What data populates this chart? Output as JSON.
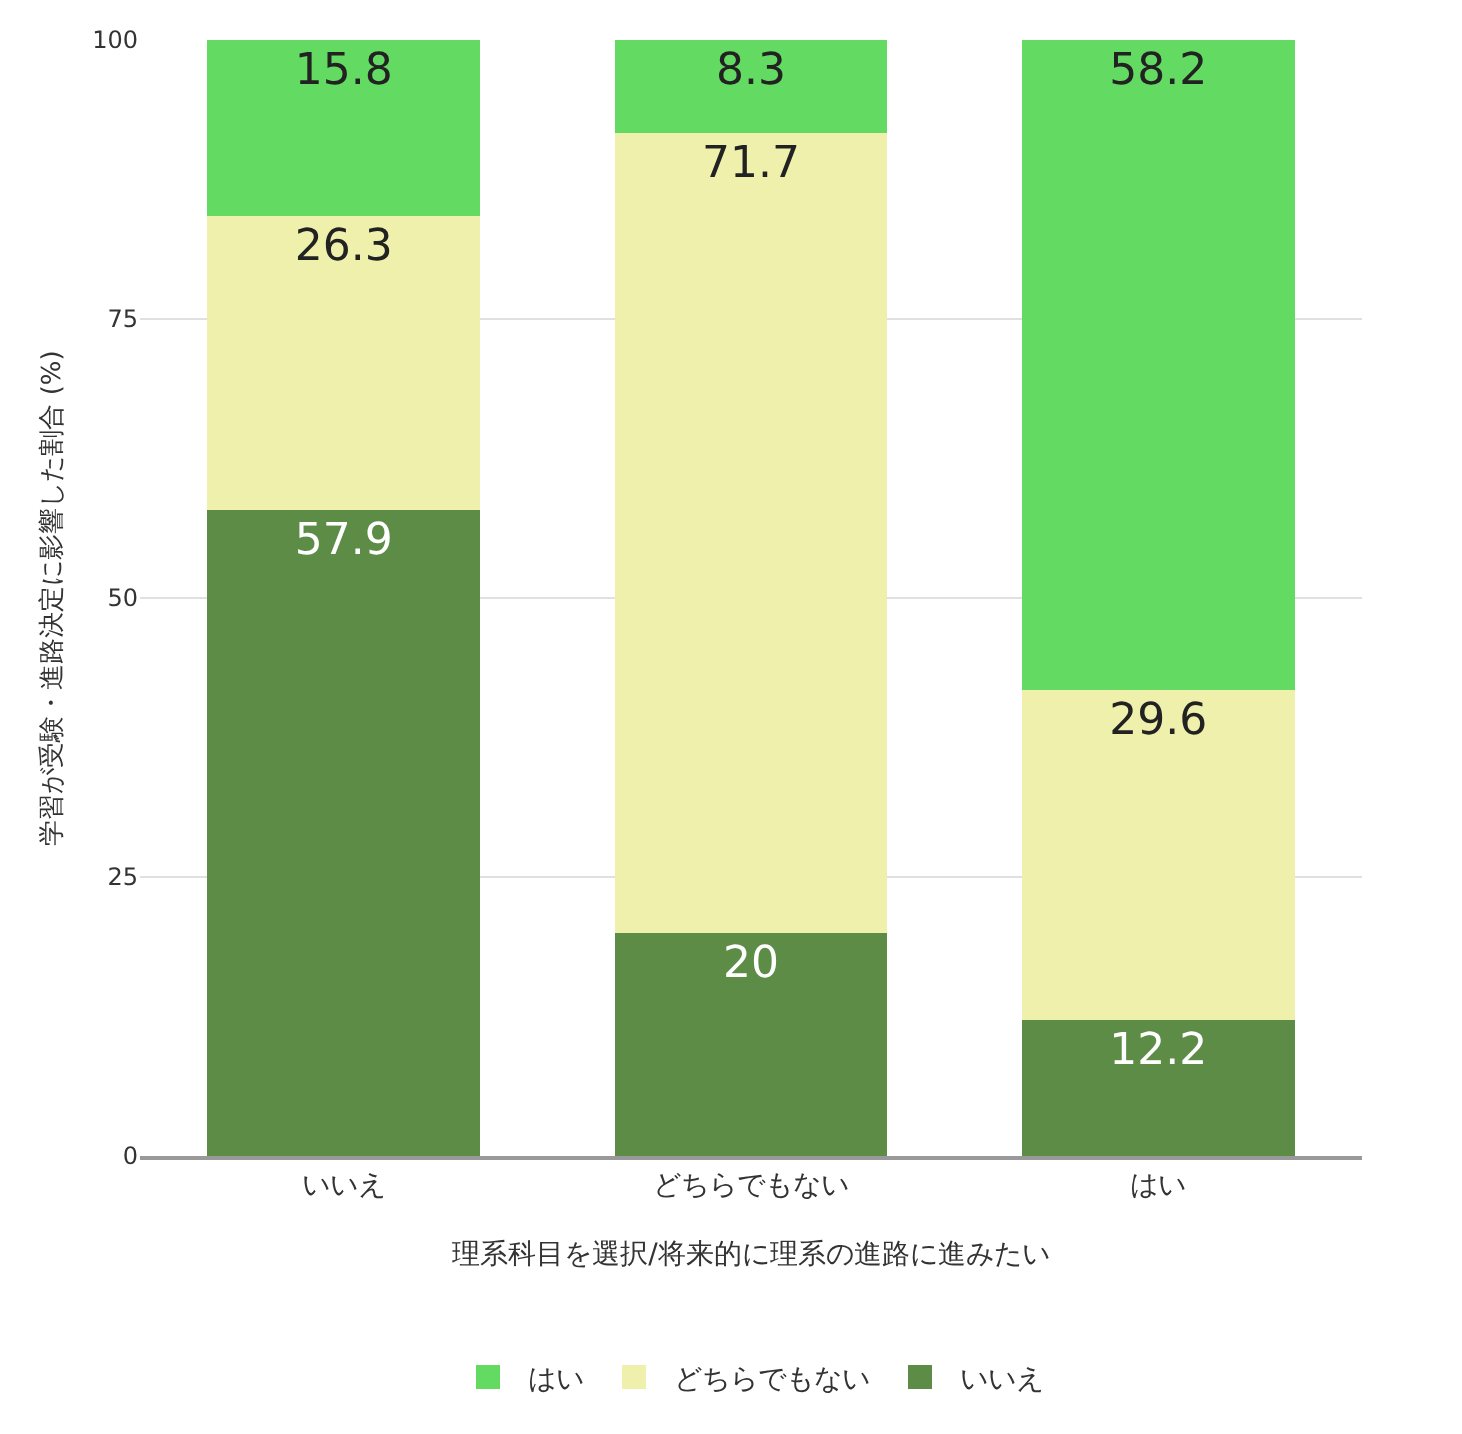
{
  "chart_data": {
    "type": "bar",
    "stacked": true,
    "categories": [
      "いいえ",
      "どちらでもない",
      "はい"
    ],
    "series": [
      {
        "name": "いいえ",
        "color": "#5d8c47",
        "values": [
          57.9,
          20,
          12.2
        ]
      },
      {
        "name": "どちらでもない",
        "color": "#eff0ab",
        "values": [
          26.3,
          71.7,
          29.6
        ]
      },
      {
        "name": "はい",
        "color": "#63db63",
        "values": [
          15.8,
          8.3,
          58.2
        ]
      }
    ],
    "xlabel": "理系科目を選択/将来的に理系の進路に進みたい",
    "ylabel": "学習が受験・進路決定に影響した割合 (%)",
    "ylim": [
      0,
      100
    ],
    "yticks": [
      0,
      25,
      50,
      75,
      100
    ],
    "grid": "y",
    "legend": "bottom",
    "data_labels": true
  }
}
